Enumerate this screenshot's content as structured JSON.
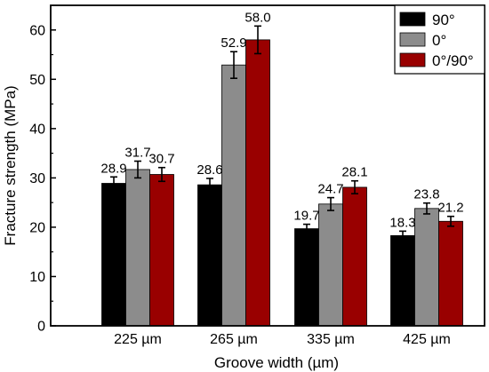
{
  "chart_data": {
    "type": "bar",
    "title": "",
    "xlabel": "Groove width (µm)",
    "ylabel": "Fracture strength (MPa)",
    "ylim": [
      0,
      65
    ],
    "yticks": [
      0,
      10,
      20,
      30,
      40,
      50,
      60
    ],
    "categories": [
      "225 µm",
      "265 µm",
      "335 µm",
      "425 µm"
    ],
    "series": [
      {
        "name": "90°",
        "color": "#000000",
        "values": [
          28.9,
          28.6,
          19.7,
          18.3
        ],
        "errors": [
          1.3,
          1.3,
          0.9,
          0.9
        ],
        "labels": [
          "28.9",
          "28.6",
          "19.7",
          "18.3"
        ]
      },
      {
        "name": "0°",
        "color": "#8c8c8c",
        "values": [
          31.7,
          52.9,
          24.7,
          23.8
        ],
        "errors": [
          1.7,
          2.7,
          1.3,
          1.1
        ],
        "labels": [
          "31.7",
          "52.9",
          "24.7",
          "23.8"
        ]
      },
      {
        "name": "0°/90°",
        "color": "#990000",
        "values": [
          30.7,
          58.0,
          28.1,
          21.2
        ],
        "errors": [
          1.4,
          2.8,
          1.3,
          1.0
        ],
        "labels": [
          "30.7",
          "58.0",
          "28.1",
          "21.2"
        ]
      }
    ],
    "legend_position": "top-right",
    "grid": false
  }
}
